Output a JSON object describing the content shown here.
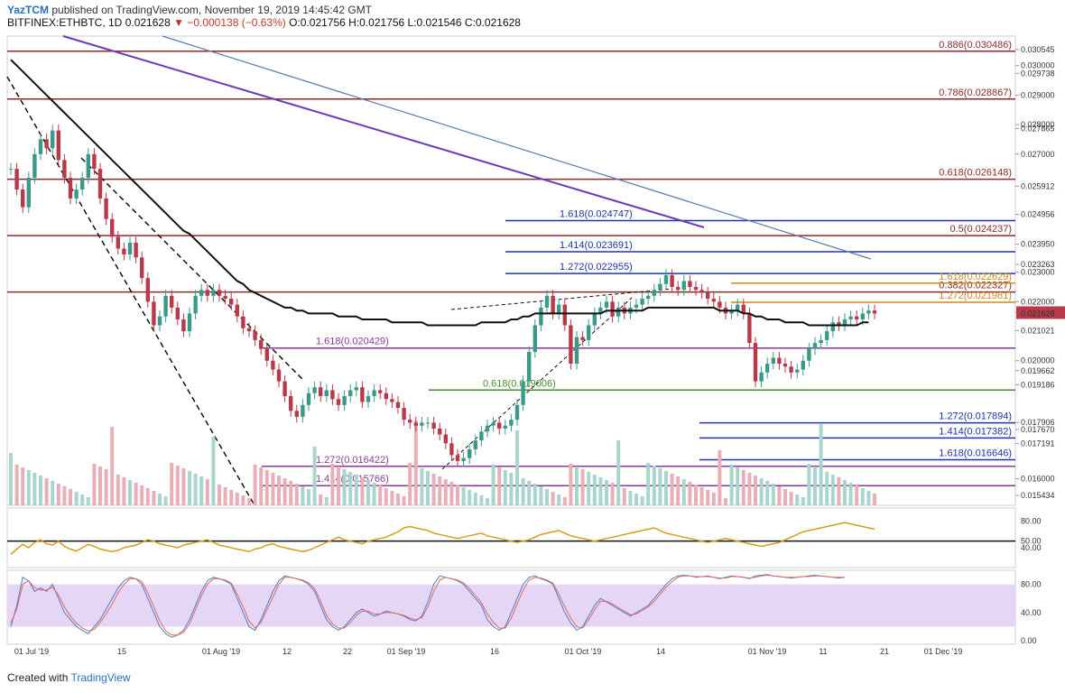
{
  "header": {
    "publisher": "YazTCM",
    "published_text": "published on TradingView.com, November 19, 2019 14:45:42 GMT",
    "symbol": "BITFINEX:ETHBTC, 1D",
    "price": "0.021628",
    "change": "▼ −0.000138 (−0.63%)",
    "ohlc": "O:0.021756 H:0.021756 L:0.021546 C:0.021628"
  },
  "footer": {
    "created_with": "Created with",
    "brand": "TradingView"
  },
  "colors": {
    "up": "#3a9a8a",
    "down": "#b8394a",
    "ma": "#111111",
    "rsi": "#d4a017",
    "stoch_k": "#4a7fd0",
    "stoch_d": "#e06a5a",
    "stoch_band": "#e6d6f5",
    "fib_brown": "#8b2a2a",
    "fib_blue": "#2233aa",
    "fib_orange": "#d08a1c",
    "fib_purple": "#8a3a9a",
    "fib_green": "#4a8a2a"
  },
  "chart_data": {
    "type": "candlestick",
    "ylim": [
      0.0151,
      0.031
    ],
    "price_ticks": [
      "0.030545",
      "0.030000",
      "0.029738",
      "0.029000",
      "0.028000",
      "0.027865",
      "0.027000",
      "0.025912",
      "0.024956",
      "0.023950",
      "0.023263",
      "0.023000",
      "0.022000",
      "0.021628",
      "0.021021",
      "0.020000",
      "0.019662",
      "0.019186",
      "0.017906",
      "0.017670",
      "0.017191",
      "0.016000",
      "0.015434"
    ],
    "x_ticks": [
      "01 Jul '19",
      "15",
      "01 Aug '19",
      "12",
      "22",
      "01 Sep '19",
      "16",
      "01 Oct '19",
      "14",
      "01 Nov '19",
      "11",
      "21",
      "01 Dec '19"
    ],
    "fib_levels": [
      {
        "label": "0.886(0.030486)",
        "value": 0.030486,
        "color": "brown"
      },
      {
        "label": "0.786(0.028867)",
        "value": 0.028867,
        "color": "brown"
      },
      {
        "label": "0.618(0.026148)",
        "value": 0.026148,
        "color": "brown"
      },
      {
        "label": "0.5(0.024237)",
        "value": 0.024237,
        "color": "brown"
      },
      {
        "label": "0.382(0.022327)",
        "value": 0.022327,
        "color": "brown"
      },
      {
        "label": "1.618(0.024747)",
        "value": 0.024747,
        "color": "blue"
      },
      {
        "label": "1.414(0.023691)",
        "value": 0.023691,
        "color": "blue"
      },
      {
        "label": "1.272(0.022955)",
        "value": 0.022955,
        "color": "blue"
      },
      {
        "label": "1.618(0.022629)",
        "value": 0.022629,
        "color": "orange"
      },
      {
        "label": "1.272(0.021981)",
        "value": 0.021981,
        "color": "orange"
      },
      {
        "label": "1.618(0.020429)",
        "value": 0.020429,
        "color": "purple"
      },
      {
        "label": "0.618(0.019006)",
        "value": 0.019006,
        "color": "green"
      },
      {
        "label": "1.272(0.017894)",
        "value": 0.017894,
        "color": "blue"
      },
      {
        "label": "1.414(0.017382)",
        "value": 0.017382,
        "color": "blue"
      },
      {
        "label": "1.618(0.016646)",
        "value": 0.016646,
        "color": "blue"
      },
      {
        "label": "1.272(0.016422)",
        "value": 0.016422,
        "color": "purple"
      },
      {
        "label": "1.414(0.015766)",
        "value": 0.015766,
        "color": "purple"
      }
    ],
    "closes": [
      0.0265,
      0.0258,
      0.0252,
      0.0262,
      0.027,
      0.0275,
      0.0272,
      0.0278,
      0.0268,
      0.0262,
      0.0255,
      0.0258,
      0.0262,
      0.027,
      0.0265,
      0.0255,
      0.0248,
      0.0242,
      0.0238,
      0.0236,
      0.024,
      0.0235,
      0.0228,
      0.022,
      0.0212,
      0.0215,
      0.0222,
      0.0218,
      0.0214,
      0.021,
      0.0216,
      0.0222,
      0.0224,
      0.0222,
      0.0224,
      0.0222,
      0.0221,
      0.0219,
      0.0215,
      0.0211,
      0.021,
      0.0207,
      0.0204,
      0.02,
      0.0197,
      0.0193,
      0.0188,
      0.0183,
      0.0181,
      0.0185,
      0.0189,
      0.0191,
      0.0188,
      0.019,
      0.0187,
      0.0185,
      0.0188,
      0.019,
      0.0191,
      0.0186,
      0.0188,
      0.019,
      0.0189,
      0.0187,
      0.0186,
      0.0184,
      0.018,
      0.0179,
      0.0178,
      0.0179,
      0.0179,
      0.0177,
      0.0175,
      0.0172,
      0.0168,
      0.0166,
      0.0167,
      0.017,
      0.0173,
      0.0176,
      0.0178,
      0.0179,
      0.0177,
      0.0178,
      0.018,
      0.0185,
      0.0193,
      0.0203,
      0.0212,
      0.0218,
      0.0222,
      0.0216,
      0.0219,
      0.0212,
      0.0199,
      0.0208,
      0.0207,
      0.0212,
      0.0216,
      0.0218,
      0.022,
      0.0215,
      0.0218,
      0.0216,
      0.0218,
      0.0219,
      0.0221,
      0.0222,
      0.0224,
      0.0226,
      0.0229,
      0.0225,
      0.0224,
      0.0227,
      0.0225,
      0.0224,
      0.0223,
      0.0221,
      0.022,
      0.0218,
      0.0216,
      0.0217,
      0.0219,
      0.0216,
      0.0206,
      0.0193,
      0.0196,
      0.0199,
      0.0201,
      0.0199,
      0.0198,
      0.0196,
      0.0197,
      0.02,
      0.0204,
      0.0206,
      0.0207,
      0.021,
      0.0213,
      0.0212,
      0.0214,
      0.0215,
      0.0214,
      0.0216,
      0.0217,
      0.0216
    ],
    "ma": [
      0.0302,
      0.03,
      0.0298,
      0.0296,
      0.0294,
      0.0292,
      0.029,
      0.0288,
      0.0286,
      0.0284,
      0.0282,
      0.028,
      0.0278,
      0.0276,
      0.0274,
      0.0272,
      0.027,
      0.0268,
      0.0266,
      0.0264,
      0.0262,
      0.026,
      0.0258,
      0.0256,
      0.0254,
      0.0252,
      0.025,
      0.0248,
      0.0246,
      0.0244,
      0.0243,
      0.0241,
      0.0239,
      0.0237,
      0.0235,
      0.0233,
      0.0231,
      0.0229,
      0.0227,
      0.0226,
      0.0224,
      0.0223,
      0.0222,
      0.0221,
      0.022,
      0.0219,
      0.0218,
      0.0218,
      0.0217,
      0.0217,
      0.0216,
      0.0216,
      0.0216,
      0.0216,
      0.0216,
      0.0215,
      0.0215,
      0.0215,
      0.0215,
      0.0214,
      0.0214,
      0.0214,
      0.0214,
      0.0214,
      0.0213,
      0.0213,
      0.0213,
      0.0213,
      0.0213,
      0.0213,
      0.0212,
      0.0212,
      0.0212,
      0.0212,
      0.0212,
      0.0212,
      0.0212,
      0.0212,
      0.0212,
      0.0213,
      0.0213,
      0.0213,
      0.0213,
      0.0213,
      0.0214,
      0.0214,
      0.0215,
      0.0215,
      0.0216,
      0.0216,
      0.0216,
      0.0216,
      0.0216,
      0.0216,
      0.0216,
      0.0216,
      0.0216,
      0.0216,
      0.0216,
      0.0216,
      0.0217,
      0.0217,
      0.0217,
      0.0217,
      0.0217,
      0.0217,
      0.0217,
      0.0218,
      0.0218,
      0.0218,
      0.0218,
      0.0218,
      0.0218,
      0.0218,
      0.0218,
      0.0218,
      0.0218,
      0.0218,
      0.0218,
      0.0217,
      0.0217,
      0.0217,
      0.0217,
      0.0216,
      0.0216,
      0.0215,
      0.0215,
      0.0214,
      0.0214,
      0.0214,
      0.0213,
      0.0213,
      0.0213,
      0.0213,
      0.0212,
      0.0212,
      0.0212,
      0.0212,
      0.0212,
      0.0212,
      0.0212,
      0.0212,
      0.0212,
      0.0213,
      0.0213
    ],
    "rsi_ticks": [
      "80.00",
      "50.00",
      "40.00"
    ],
    "rsi": [
      30,
      38,
      45,
      40,
      48,
      52,
      46,
      44,
      50,
      42,
      38,
      35,
      40,
      45,
      42,
      38,
      36,
      34,
      36,
      40,
      42,
      44,
      48,
      52,
      50,
      46,
      44,
      42,
      40,
      44,
      46,
      48,
      50,
      52,
      48,
      44,
      42,
      40,
      38,
      36,
      34,
      38,
      40,
      44,
      46,
      42,
      40,
      38,
      36,
      34,
      36,
      40,
      44,
      48,
      52,
      56,
      52,
      50,
      48,
      46,
      50,
      52,
      54,
      56,
      60,
      64,
      70,
      72,
      70,
      68,
      66,
      62,
      60,
      58,
      56,
      54,
      56,
      58,
      60,
      62,
      58,
      56,
      54,
      52,
      50,
      48,
      50,
      52,
      56,
      60,
      62,
      64,
      66,
      62,
      58,
      56,
      54,
      52,
      50,
      52,
      54,
      56,
      58,
      60,
      62,
      64,
      66,
      68,
      70,
      66,
      62,
      60,
      58,
      56,
      54,
      52,
      50,
      48,
      50,
      52,
      54,
      52,
      50,
      48,
      46,
      44,
      42,
      44,
      46,
      48,
      52,
      56,
      60,
      64,
      66,
      68,
      70,
      72,
      74,
      76,
      78,
      76,
      74,
      72,
      70,
      68
    ],
    "stoch_ticks": [
      "80.00",
      "40.00",
      "0.00"
    ],
    "stoch_k": [
      20,
      50,
      90,
      85,
      70,
      75,
      70,
      80,
      60,
      40,
      30,
      20,
      15,
      10,
      20,
      30,
      45,
      60,
      75,
      85,
      90,
      88,
      80,
      60,
      40,
      20,
      10,
      5,
      8,
      15,
      30,
      50,
      70,
      85,
      90,
      88,
      85,
      80,
      60,
      40,
      20,
      15,
      30,
      50,
      70,
      85,
      92,
      90,
      88,
      85,
      80,
      70,
      50,
      30,
      20,
      15,
      20,
      30,
      40,
      45,
      40,
      35,
      38,
      42,
      40,
      38,
      35,
      30,
      28,
      35,
      55,
      80,
      92,
      90,
      88,
      85,
      80,
      70,
      60,
      50,
      30,
      20,
      15,
      20,
      40,
      60,
      80,
      90,
      92,
      88,
      85,
      80,
      60,
      40,
      25,
      15,
      20,
      35,
      50,
      60,
      55,
      50,
      45,
      40,
      35,
      40,
      45,
      50,
      60,
      70,
      80,
      88,
      92,
      93,
      92,
      90,
      91,
      92,
      90,
      88,
      90,
      92,
      91,
      90,
      88,
      92,
      93,
      94,
      92,
      91,
      90,
      89,
      90,
      91,
      92,
      93,
      92,
      91,
      90,
      89,
      90
    ],
    "stoch_d": [
      25,
      45,
      80,
      85,
      75,
      72,
      72,
      76,
      65,
      48,
      35,
      25,
      18,
      14,
      16,
      26,
      38,
      52,
      68,
      80,
      88,
      88,
      84,
      68,
      48,
      28,
      14,
      8,
      8,
      12,
      24,
      44,
      64,
      80,
      88,
      88,
      86,
      82,
      66,
      48,
      28,
      18,
      26,
      44,
      62,
      80,
      90,
      90,
      88,
      86,
      82,
      74,
      56,
      36,
      24,
      18,
      18,
      26,
      36,
      42,
      42,
      38,
      38,
      40,
      40,
      38,
      36,
      32,
      30,
      33,
      48,
      70,
      86,
      90,
      88,
      86,
      82,
      74,
      64,
      54,
      38,
      26,
      18,
      18,
      32,
      52,
      72,
      86,
      90,
      89,
      86,
      82,
      66,
      48,
      32,
      20,
      18,
      30,
      44,
      56,
      56,
      52,
      47,
      42,
      37,
      38,
      43,
      48,
      56,
      66,
      76,
      84,
      90,
      92,
      92,
      91,
      91,
      91,
      90,
      89,
      89,
      91,
      91,
      90,
      89,
      90,
      92,
      93,
      92,
      91,
      90,
      90,
      90,
      91,
      91,
      92,
      92,
      91,
      90,
      90,
      90
    ]
  }
}
